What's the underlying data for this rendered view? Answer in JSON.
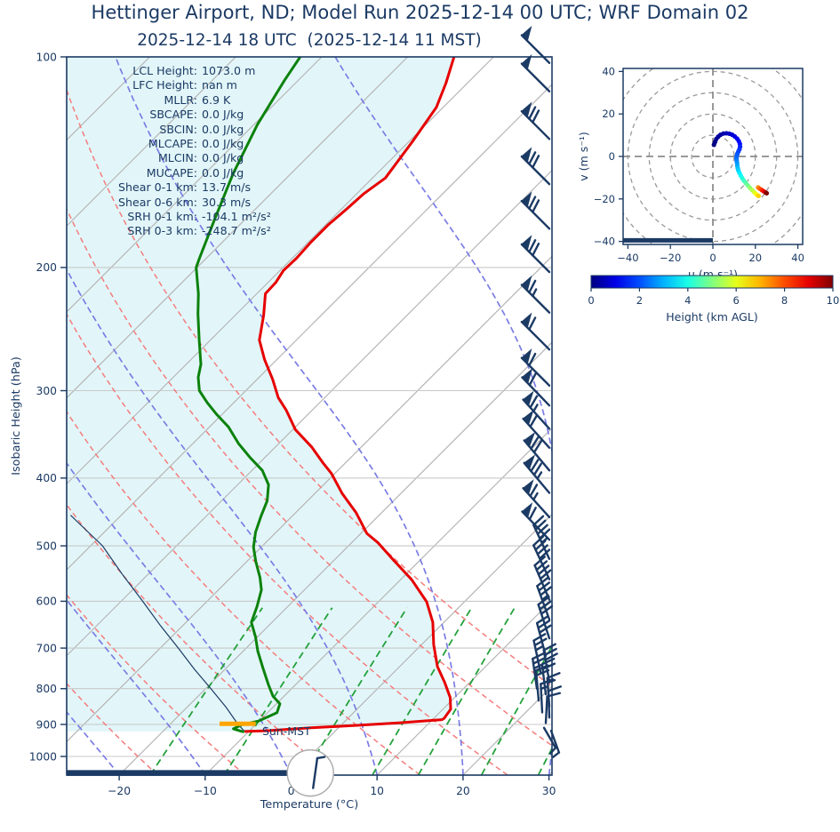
{
  "title": "Hettinger Airport, ND; Model Run 2025-12-14 00 UTC; WRF Domain 02",
  "subtitle": "2025-12-14 18 UTC  (2025-12-14 11 MST)",
  "colors": {
    "navy": "#1b3a64",
    "temperature": "#e60000",
    "dewpoint": "#0c820c",
    "fill": "#e2f6f9",
    "dry_adiabat": "#f47d7d",
    "moist_adiabat": "#7b7de4",
    "mixing_line": "#23a13a",
    "isotherm": "#b5b5b5",
    "pressure_grid": "#c8c8c8",
    "lcl_orange": "#ffa500",
    "ring_gray": "#9a9a9a"
  },
  "chart_data": {
    "type": "line",
    "skewt": {
      "xlabel": "Temperature (°C)",
      "ylabel": "Isobaric Height (hPa)",
      "x_ticks": [
        -20,
        -10,
        0,
        10,
        20,
        30
      ],
      "p_ticks": [
        100,
        200,
        300,
        400,
        500,
        600,
        700,
        800,
        900,
        1000
      ],
      "xlim": [
        -25.7,
        30
      ],
      "plim": [
        100,
        1063
      ],
      "stats": [
        {
          "label": "LCL Height:",
          "value": "1073.0 m"
        },
        {
          "label": "LFC Height:",
          "value": "nan m"
        },
        {
          "label": "MLLR:",
          "value": "6.9 K"
        },
        {
          "label": "SBCAPE:",
          "value": "0.0 J/kg"
        },
        {
          "label": "SBCIN:",
          "value": "0.0 J/kg"
        },
        {
          "label": "MLCAPE:",
          "value": "0.0 J/kg"
        },
        {
          "label": "MLCIN:",
          "value": "0.0 J/kg"
        },
        {
          "label": "MUCAPE:",
          "value": "0.0 J/kg"
        },
        {
          "label": "Shear 0-1 km:",
          "value": "13.7 m/s"
        },
        {
          "label": "Shear 0-6 km:",
          "value": "30.3 m/s"
        },
        {
          "label": "SRH 0-1 km:",
          "value": "-104.1 m²/s²"
        },
        {
          "label": "SRH 0-3 km:",
          "value": "-248.7 m²/s²"
        }
      ],
      "sun_marker": {
        "text": "Sun-MST",
        "t": -5.2,
        "p": 932
      },
      "lcl_marker": {
        "p": 898,
        "t_from": -14.3,
        "t_to": -10.1
      },
      "ground_bar": {
        "p_top": 1046,
        "p_bot": 1066,
        "t_end": 0.2
      },
      "surface_station": {
        "t": 2,
        "p": 1056,
        "radius": 26,
        "dir": 8,
        "halfs": 1
      },
      "temperature_profile": [
        [
          100,
          -64.6
        ],
        [
          109,
          -62.5
        ],
        [
          118,
          -60.8
        ],
        [
          132,
          -59.6
        ],
        [
          149,
          -58.5
        ],
        [
          157,
          -59.2
        ],
        [
          165,
          -59.4
        ],
        [
          174,
          -59.7
        ],
        [
          184,
          -59.7
        ],
        [
          194,
          -59.5
        ],
        [
          202,
          -59.6
        ],
        [
          210,
          -59.1
        ],
        [
          218,
          -59.0
        ],
        [
          234,
          -56.7
        ],
        [
          254,
          -54.3
        ],
        [
          271,
          -51.4
        ],
        [
          289,
          -48.2
        ],
        [
          307,
          -45.4
        ],
        [
          320,
          -43.0
        ],
        [
          341,
          -39.7
        ],
        [
          361,
          -35.8
        ],
        [
          380,
          -32.7
        ],
        [
          394,
          -30.4
        ],
        [
          421,
          -26.8
        ],
        [
          448,
          -23.0
        ],
        [
          480,
          -19.3
        ],
        [
          495,
          -16.9
        ],
        [
          524,
          -13.1
        ],
        [
          559,
          -8.7
        ],
        [
          601,
          -4.4
        ],
        [
          643,
          -1.3
        ],
        [
          692,
          1.4
        ],
        [
          744,
          4.4
        ],
        [
          784,
          7.1
        ],
        [
          824,
          9.5
        ],
        [
          856,
          10.9
        ],
        [
          882,
          11.2
        ],
        [
          886,
          11.1
        ],
        [
          895,
          6.6
        ],
        [
          903,
          1.7
        ],
        [
          910,
          -3.2
        ],
        [
          919,
          -8.0
        ],
        [
          921,
          -10.5
        ]
      ],
      "dewpoint_profile": [
        [
          100,
          -82.5
        ],
        [
          108,
          -81.6
        ],
        [
          125,
          -79.6
        ],
        [
          147,
          -76.7
        ],
        [
          172,
          -73.4
        ],
        [
          194,
          -70.8
        ],
        [
          200,
          -70.1
        ],
        [
          218,
          -66.8
        ],
        [
          233,
          -64.5
        ],
        [
          254,
          -61.3
        ],
        [
          275,
          -58.3
        ],
        [
          287,
          -57.1
        ],
        [
          300,
          -55.4
        ],
        [
          312,
          -53.1
        ],
        [
          324,
          -50.7
        ],
        [
          338,
          -47.8
        ],
        [
          357,
          -44.7
        ],
        [
          374,
          -41.7
        ],
        [
          390,
          -38.8
        ],
        [
          409,
          -36.4
        ],
        [
          431,
          -34.7
        ],
        [
          454,
          -33.6
        ],
        [
          478,
          -32.4
        ],
        [
          502,
          -30.9
        ],
        [
          526,
          -29.0
        ],
        [
          555,
          -26.6
        ],
        [
          578,
          -25.0
        ],
        [
          610,
          -23.6
        ],
        [
          643,
          -22.4
        ],
        [
          675,
          -20.2
        ],
        [
          707,
          -18.3
        ],
        [
          748,
          -15.7
        ],
        [
          789,
          -13.2
        ],
        [
          820,
          -11.3
        ],
        [
          841,
          -9.6
        ],
        [
          866,
          -8.9
        ],
        [
          890,
          -10.1
        ],
        [
          901,
          -11.6
        ],
        [
          913,
          -12.1
        ],
        [
          921,
          -10.8
        ],
        [
          922,
          -10.5
        ]
      ],
      "parcel_profile": [
        [
          921,
          -10.5
        ],
        [
          898,
          -12.2
        ],
        [
          850,
          -15.5
        ],
        [
          800,
          -19.4
        ],
        [
          750,
          -23.6
        ],
        [
          700,
          -27.9
        ],
        [
          650,
          -32.6
        ],
        [
          600,
          -37.5
        ],
        [
          550,
          -42.9
        ],
        [
          500,
          -48.6
        ],
        [
          466,
          -53.7
        ],
        [
          452,
          -55.9
        ]
      ],
      "winds": [
        [
          102,
          315,
          1,
          0,
          0,
          0,
          44
        ],
        [
          112,
          315,
          1,
          0,
          0,
          0,
          44
        ],
        [
          131,
          315,
          1,
          2,
          0,
          0,
          44
        ],
        [
          152,
          315,
          1,
          2,
          0,
          0,
          44
        ],
        [
          176,
          315,
          1,
          2,
          0,
          0,
          44
        ],
        [
          203,
          315,
          1,
          2,
          0,
          0,
          44
        ],
        [
          232,
          315,
          1,
          1,
          1,
          0,
          44
        ],
        [
          262,
          315,
          1,
          1,
          0,
          0,
          44
        ],
        [
          295,
          315,
          1,
          1,
          0,
          0,
          44
        ],
        [
          315,
          316,
          1,
          1,
          0,
          0,
          44
        ],
        [
          340,
          318,
          1,
          1,
          1,
          0,
          44
        ],
        [
          362,
          318,
          1,
          1,
          0,
          0,
          44
        ],
        [
          390,
          320,
          1,
          2,
          0,
          0,
          44
        ],
        [
          420,
          320,
          1,
          2,
          1,
          0,
          44
        ],
        [
          455,
          318,
          1,
          1,
          1,
          0,
          44
        ],
        [
          490,
          316,
          1,
          1,
          0,
          0,
          44
        ],
        [
          522,
          335,
          0,
          4,
          1,
          0,
          42
        ],
        [
          558,
          335,
          0,
          4,
          0,
          0,
          42
        ],
        [
          597,
          337,
          0,
          4,
          0,
          0,
          42
        ],
        [
          637,
          340,
          0,
          3,
          1,
          0,
          40
        ],
        [
          678,
          342,
          0,
          3,
          0,
          0,
          40
        ],
        [
          718,
          345,
          0,
          3,
          0,
          -4,
          38
        ],
        [
          757,
          348,
          0,
          2,
          1,
          -10,
          36
        ],
        [
          782,
          350,
          0,
          3,
          0,
          0,
          36
        ],
        [
          800,
          352,
          0,
          2,
          1,
          -14,
          34
        ],
        [
          815,
          353,
          0,
          2,
          0,
          -4,
          34
        ],
        [
          832,
          355,
          0,
          2,
          0,
          -12,
          34
        ],
        [
          848,
          356,
          0,
          1,
          1,
          0,
          32
        ],
        [
          865,
          357,
          0,
          1,
          1,
          -8,
          32
        ],
        [
          880,
          358,
          0,
          1,
          0,
          0,
          30
        ],
        [
          896,
          3,
          0,
          1,
          0,
          -4,
          30
        ],
        [
          910,
          150,
          0,
          0,
          1,
          -6,
          26
        ],
        [
          919,
          160,
          0,
          0,
          1,
          2,
          26
        ]
      ],
      "background": {
        "isotherms": {
          "min": -110,
          "max": 40,
          "step": 10
        },
        "dry_adiabats": {
          "min": -150,
          "max": 40,
          "step": 10
        },
        "moist_adiabats": {
          "min": -60,
          "max": 30,
          "step": 10
        },
        "mixing_ratios": [
          1,
          2,
          4,
          7,
          10,
          16,
          24,
          32
        ],
        "mixing_p_range": [
          1063,
          600
        ]
      }
    },
    "hodograph": {
      "xlabel": "u (m s⁻¹)",
      "ylabel": "v (m s⁻¹)",
      "u_ticks": [
        -40,
        -20,
        0,
        20,
        40
      ],
      "v_ticks": [
        -40,
        -20,
        0,
        20,
        40
      ],
      "ulim": [
        -42.3,
        42.3
      ],
      "vlim": [
        -42.3,
        42.3
      ],
      "rings": [
        10,
        20,
        30,
        40,
        50,
        60
      ],
      "trace": [
        [
          0.5,
          5.5,
          0
        ],
        [
          1.0,
          6.8,
          0.08
        ],
        [
          1.6,
          8.2,
          0.16
        ],
        [
          2.5,
          9.3,
          0.25
        ],
        [
          3.6,
          10.2,
          0.35
        ],
        [
          5.0,
          10.8,
          0.45
        ],
        [
          6.4,
          10.9,
          0.55
        ],
        [
          7.8,
          10.7,
          0.67
        ],
        [
          9.1,
          10.2,
          0.8
        ],
        [
          10.3,
          9.4,
          0.95
        ],
        [
          11.4,
          8.4,
          1.1
        ],
        [
          12.2,
          7.2,
          1.25
        ],
        [
          12.7,
          5.9,
          1.4
        ],
        [
          12.8,
          4.6,
          1.55
        ],
        [
          12.5,
          3.4,
          1.7
        ],
        [
          12.0,
          2.3,
          1.85
        ],
        [
          11.5,
          1.2,
          2.0
        ],
        [
          11.2,
          0.1,
          2.15
        ],
        [
          11.1,
          -1.0,
          2.3
        ],
        [
          11.2,
          -2.1,
          2.5
        ],
        [
          11.4,
          -3.2,
          2.7
        ],
        [
          11.5,
          -4.4,
          2.9
        ],
        [
          11.7,
          -5.5,
          3.1
        ],
        [
          12.0,
          -6.6,
          3.3
        ],
        [
          12.5,
          -7.8,
          3.55
        ],
        [
          13.1,
          -9.0,
          3.8
        ],
        [
          13.8,
          -10.2,
          4.05
        ],
        [
          14.6,
          -11.4,
          4.3
        ],
        [
          15.5,
          -12.5,
          4.6
        ],
        [
          16.5,
          -13.7,
          4.9
        ],
        [
          17.5,
          -14.8,
          5.2
        ],
        [
          18.5,
          -15.9,
          5.5
        ],
        [
          19.4,
          -16.8,
          5.8
        ],
        [
          20.2,
          -17.6,
          6.1
        ],
        [
          20.9,
          -18.2,
          6.4
        ],
        [
          21.5,
          -18.6,
          6.7
        ]
      ],
      "trace_upper": [
        [
          21.3,
          -14.6,
          7.4
        ],
        [
          22.1,
          -15.2,
          7.8
        ],
        [
          23.0,
          -15.8,
          8.3
        ],
        [
          23.9,
          -16.4,
          8.8
        ],
        [
          24.7,
          -16.9,
          9.4
        ],
        [
          25.3,
          -17.3,
          10
        ]
      ],
      "baseline": {
        "v": -39.5,
        "u_from": -42.3,
        "u_to": 0
      }
    },
    "colorbar": {
      "label": "Height (km AGL)",
      "min": 0,
      "max": 10,
      "ticks": [
        0,
        2,
        4,
        6,
        8,
        10
      ]
    }
  }
}
